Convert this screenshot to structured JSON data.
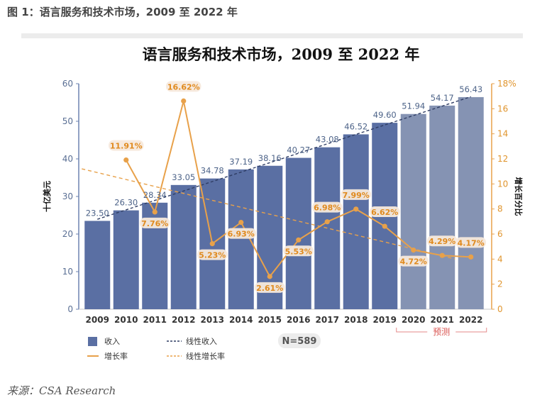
{
  "figure_caption": "图 1：语言服务和技术市场，2009 至 2022 年",
  "source_note": "来源：CSA Research",
  "colors": {
    "bar_actual": "#5a6fa3",
    "bar_forecast": "#8593b3",
    "rate_line": "#e8a14a",
    "trend_revenue": "#2f3d64",
    "trend_rate": "#e8a14a",
    "left_axis": "#6d83b0",
    "right_axis": "#e8a14a",
    "forecast_bracket": "#e58a8a"
  },
  "chart_data": {
    "type": "bar",
    "title": "语言服务和技术市场，2009 至 2022 年",
    "categories": [
      "2009",
      "2010",
      "2011",
      "2012",
      "2013",
      "2014",
      "2015",
      "2016",
      "2017",
      "2018",
      "2019",
      "2020",
      "2021",
      "2022"
    ],
    "forecast_from": "2020",
    "forecast_label": "预测",
    "y_left": {
      "label": "十亿美元",
      "ylim": [
        0,
        60
      ],
      "ticks": [
        "0",
        "10",
        "20",
        "30",
        "40",
        "50",
        "60"
      ]
    },
    "y_right": {
      "label": "增长百分比",
      "ylim": [
        0,
        18
      ],
      "ticks": [
        "0",
        "2",
        "4",
        "6",
        "8",
        "10",
        "12",
        "14",
        "16",
        "18%"
      ]
    },
    "series": [
      {
        "name": "收入",
        "type": "bar",
        "axis": "left",
        "values": [
          23.5,
          26.3,
          28.34,
          33.05,
          34.78,
          37.19,
          38.16,
          40.27,
          43.08,
          46.52,
          49.6,
          51.94,
          54.17,
          56.43
        ],
        "labels": [
          "23.50",
          "26.30",
          "28.34",
          "33.05",
          "34.78",
          "37.19",
          "38.16",
          "40.27",
          "43.08",
          "46.52",
          "49.60",
          "51.94",
          "54.17",
          "56.43"
        ]
      },
      {
        "name": "增长率",
        "type": "line",
        "axis": "right",
        "values": [
          null,
          11.91,
          7.76,
          16.62,
          5.23,
          6.93,
          2.61,
          5.53,
          6.98,
          7.99,
          6.62,
          4.72,
          4.29,
          4.17
        ],
        "labels": [
          null,
          "11.91%",
          "7.76%",
          "16.62%",
          "5.23%",
          "6.93%",
          "2.61%",
          "5.53%",
          "6.98%",
          "7.99%",
          "6.62%",
          "4.72%",
          "4.29%",
          "4.17%"
        ]
      }
    ],
    "trendlines": [
      {
        "name": "线性收入",
        "axis": "left",
        "style": "dashed"
      },
      {
        "name": "线性增长率",
        "axis": "right",
        "style": "dashed"
      }
    ],
    "annotation": "N=589",
    "legend_placement": "bottom-left",
    "grid": false
  }
}
